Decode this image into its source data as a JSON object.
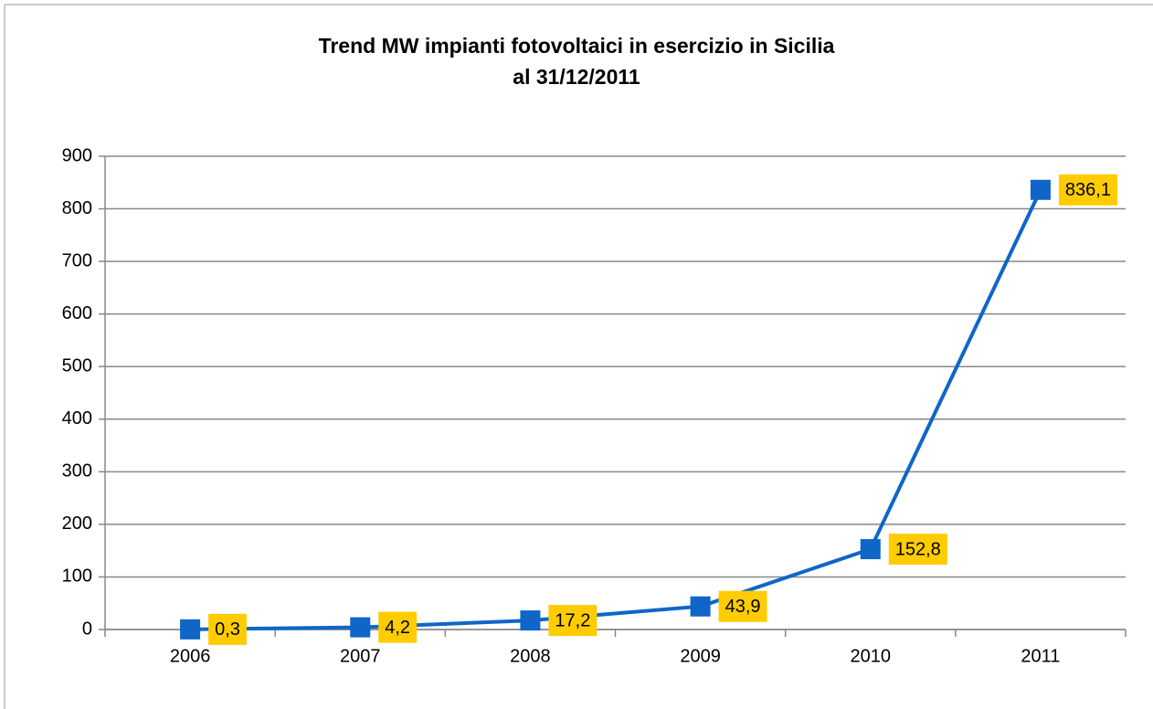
{
  "chart_data": {
    "type": "line",
    "title": "Trend MW impianti fotovoltaici in esercizio in Sicilia",
    "subtitle": "al 31/12/2011",
    "categories": [
      "2006",
      "2007",
      "2008",
      "2009",
      "2010",
      "2011"
    ],
    "series": [
      {
        "color": "#0f66c8",
        "values": [
          0.3,
          4.2,
          17.2,
          43.9,
          152.8,
          836.1
        ],
        "value_labels": [
          "0,3",
          "4,2",
          "17,2",
          "43,9",
          "152,8",
          "836,1"
        ]
      }
    ],
    "ylim": [
      0,
      900
    ],
    "yticks": [
      0,
      100,
      200,
      300,
      400,
      500,
      600,
      700,
      800,
      900
    ],
    "grid": true,
    "label_color": "#ffcc00"
  }
}
